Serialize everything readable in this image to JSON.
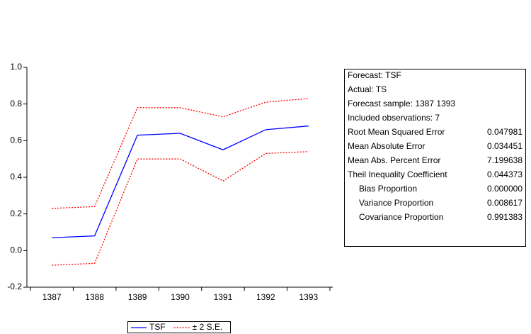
{
  "chart_data": {
    "type": "line",
    "categories": [
      "1387",
      "1388",
      "1389",
      "1390",
      "1391",
      "1392",
      "1393"
    ],
    "series": [
      {
        "name": "TSF",
        "color": "#0000ff",
        "values": [
          0.07,
          0.08,
          0.63,
          0.64,
          0.55,
          0.66,
          0.68
        ]
      },
      {
        "name": "± 2 S.E.",
        "color": "#ff0000",
        "upper": [
          0.23,
          0.24,
          0.78,
          0.78,
          0.73,
          0.81,
          0.83
        ],
        "lower": [
          -0.08,
          -0.07,
          0.5,
          0.5,
          0.38,
          0.53,
          0.54
        ]
      }
    ],
    "ylim": [
      -0.2,
      1.0
    ],
    "yticks": [
      -0.2,
      {
        "value": 0,
        "label": "0.0"
      },
      0.2,
      0.4,
      0.6,
      0.8,
      {
        "value": 1,
        "label": "1.0"
      }
    ]
  },
  "stats_box": {
    "header": [
      "Forecast: TSF",
      "Actual: TS",
      "Forecast sample: 1387 1393",
      "Included observations: 7"
    ],
    "rows": [
      [
        "Root Mean Squared Error",
        "0.047981"
      ],
      [
        "Mean Absolute Error",
        "0.034451"
      ],
      [
        "Mean Abs. Percent Error",
        "7.199638"
      ],
      [
        "Theil Inequality Coefficient",
        "0.044373"
      ],
      [
        "Bias Proportion",
        "0.000000"
      ],
      [
        "Variance Proportion",
        "0.008617"
      ],
      [
        "Covariance Proportion",
        "0.991383"
      ]
    ]
  }
}
